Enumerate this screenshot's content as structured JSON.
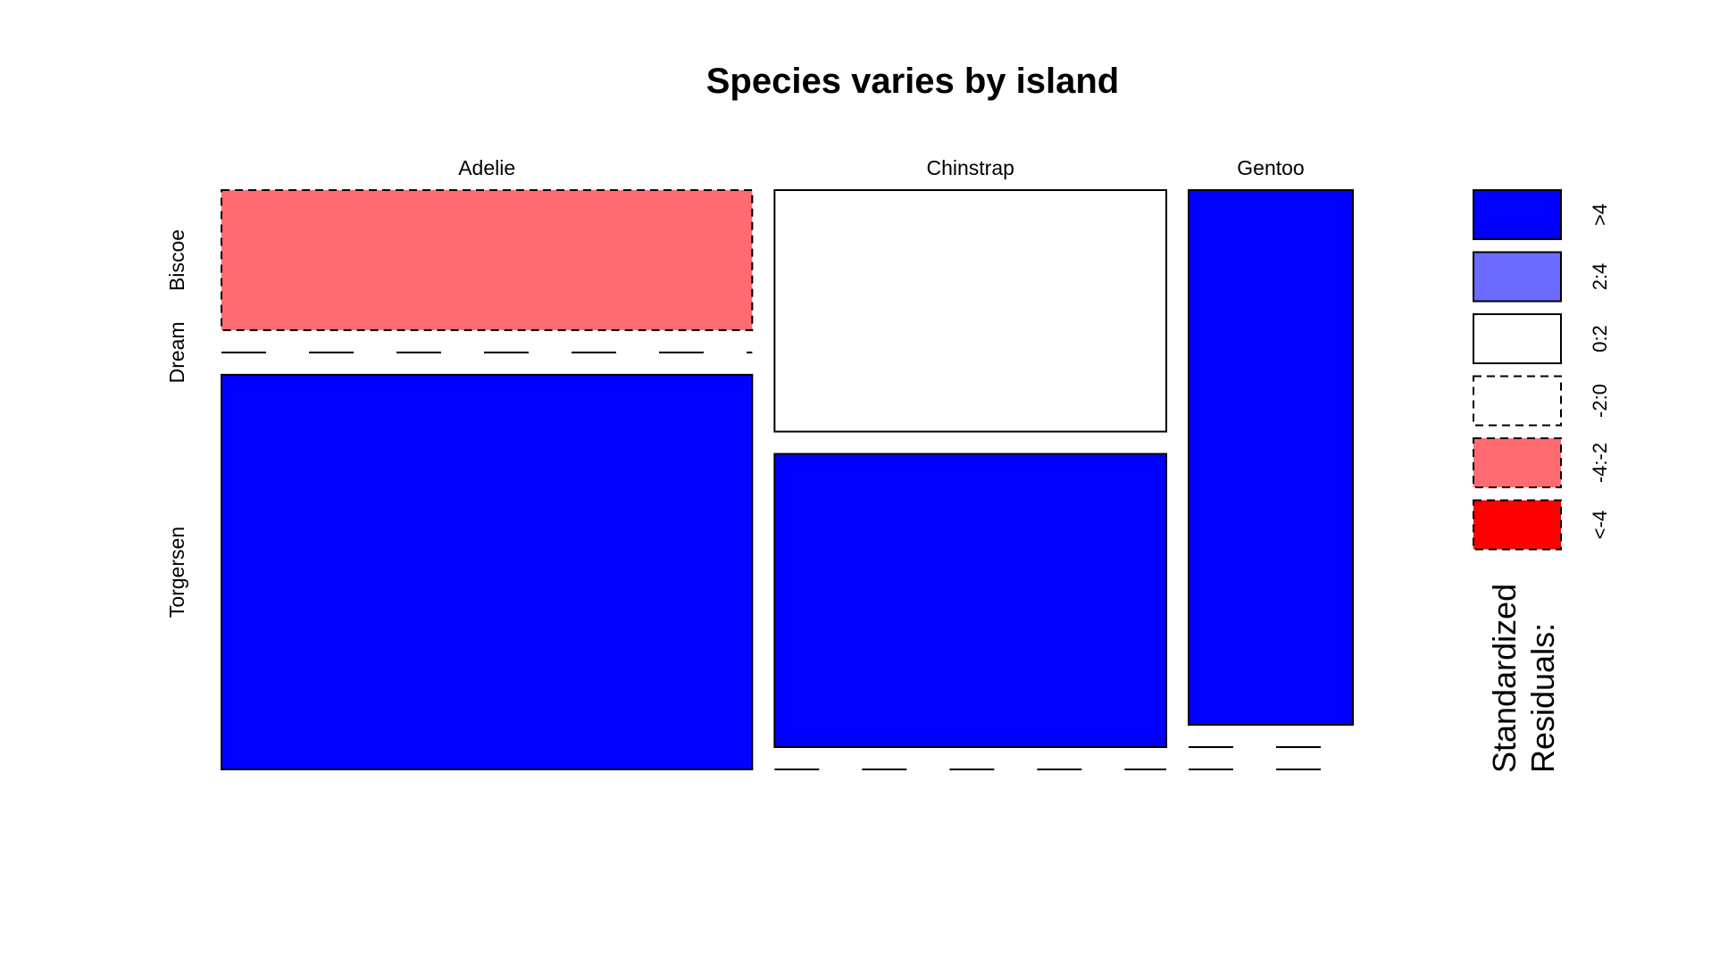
{
  "chart_data": {
    "type": "mosaic",
    "title": "Species varies by island",
    "columns": [
      "Adelie",
      "Chinstrap",
      "Gentoo"
    ],
    "rows": [
      "Biscoe",
      "Dream",
      "Torgersen"
    ],
    "counts": [
      [
        44,
        56,
        52
      ],
      [
        0,
        68,
        0
      ],
      [
        124,
        0,
        0
      ]
    ],
    "residual_level_index": [
      [
        4,
        2,
        0
      ],
      [
        0,
        0,
        0
      ],
      [
        0,
        0,
        0
      ]
    ],
    "legend": {
      "title_lines": [
        "Standardized",
        "Residuals:"
      ],
      "levels": [
        {
          "label": ">4",
          "color": "#0000ff",
          "dashed": false
        },
        {
          "label": "2:4",
          "color": "#6b6bff",
          "dashed": false
        },
        {
          "label": "0:2",
          "color": "#ffffff",
          "dashed": false
        },
        {
          "label": "-2:0",
          "color": "#ffffff",
          "dashed": true
        },
        {
          "label": "-4:-2",
          "color": "#ff6b70",
          "dashed": true
        },
        {
          "label": "<-4",
          "color": "#ff0000",
          "dashed": true
        }
      ]
    }
  }
}
